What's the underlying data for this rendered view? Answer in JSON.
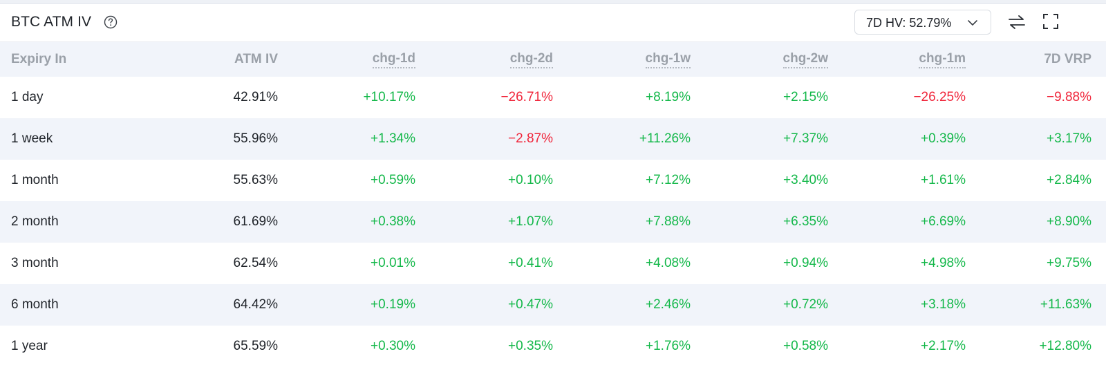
{
  "header": {
    "title": "BTC ATM IV",
    "hv_select_value": "7D HV: 52.79%"
  },
  "columns": [
    "Expiry In",
    "ATM IV",
    "chg-1d",
    "chg-2d",
    "chg-1w",
    "chg-2w",
    "chg-1m",
    "7D VRP"
  ],
  "rows": [
    {
      "expiry": "1 day",
      "atm_iv": "42.91%",
      "chg_1d": "+10.17%",
      "chg_2d": "−26.71%",
      "chg_1w": "+8.19%",
      "chg_2w": "+2.15%",
      "chg_1m": "−26.25%",
      "vrp_7d": "−9.88%"
    },
    {
      "expiry": "1 week",
      "atm_iv": "55.96%",
      "chg_1d": "+1.34%",
      "chg_2d": "−2.87%",
      "chg_1w": "+11.26%",
      "chg_2w": "+7.37%",
      "chg_1m": "+0.39%",
      "vrp_7d": "+3.17%"
    },
    {
      "expiry": "1 month",
      "atm_iv": "55.63%",
      "chg_1d": "+0.59%",
      "chg_2d": "+0.10%",
      "chg_1w": "+7.12%",
      "chg_2w": "+3.40%",
      "chg_1m": "+1.61%",
      "vrp_7d": "+2.84%"
    },
    {
      "expiry": "2 month",
      "atm_iv": "61.69%",
      "chg_1d": "+0.38%",
      "chg_2d": "+1.07%",
      "chg_1w": "+7.88%",
      "chg_2w": "+6.35%",
      "chg_1m": "+6.69%",
      "vrp_7d": "+8.90%"
    },
    {
      "expiry": "3 month",
      "atm_iv": "62.54%",
      "chg_1d": "+0.01%",
      "chg_2d": "+0.41%",
      "chg_1w": "+4.08%",
      "chg_2w": "+0.94%",
      "chg_1m": "+4.98%",
      "vrp_7d": "+9.75%"
    },
    {
      "expiry": "6 month",
      "atm_iv": "64.42%",
      "chg_1d": "+0.19%",
      "chg_2d": "+0.47%",
      "chg_1w": "+2.46%",
      "chg_2w": "+0.72%",
      "chg_1m": "+3.18%",
      "vrp_7d": "+11.63%"
    },
    {
      "expiry": "1 year",
      "atm_iv": "65.59%",
      "chg_1d": "+0.30%",
      "chg_2d": "+0.35%",
      "chg_1w": "+1.76%",
      "chg_2w": "+0.58%",
      "chg_1m": "+2.17%",
      "vrp_7d": "+12.80%"
    }
  ],
  "colors": {
    "positive": "#14b84a",
    "negative": "#f0263b",
    "header_bg": "#f1f4fa",
    "alt_row_bg": "#f1f4fa"
  },
  "icons": {
    "help": "question-circle-icon",
    "dropdown": "chevron-down-icon",
    "swap": "swap-arrows-icon",
    "fullscreen": "fullscreen-icon"
  }
}
